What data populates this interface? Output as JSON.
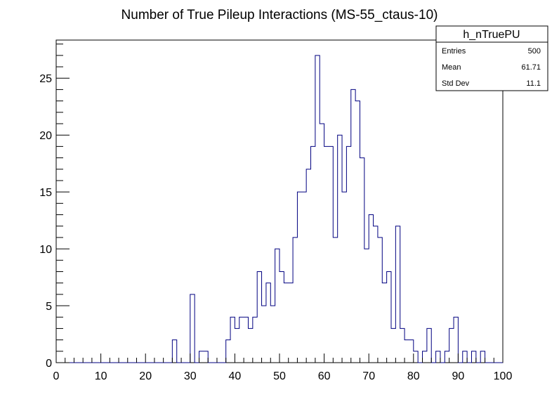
{
  "chart_data": {
    "type": "histogram",
    "title": "Number of True Pileup Interactions (MS-55_ctaus-10)",
    "xlabel": "",
    "ylabel": "",
    "xlim": [
      0,
      100
    ],
    "ylim": [
      0,
      28.35
    ],
    "bin_width": 1,
    "x_ticks": [
      0,
      10,
      20,
      30,
      40,
      50,
      60,
      70,
      80,
      90,
      100
    ],
    "y_ticks": [
      0,
      5,
      10,
      15,
      20,
      25
    ],
    "grid": false,
    "line_color": "#000080",
    "bins_x_low": [
      0,
      1,
      2,
      3,
      4,
      5,
      6,
      7,
      8,
      9,
      10,
      11,
      12,
      13,
      14,
      15,
      16,
      17,
      18,
      19,
      20,
      21,
      22,
      23,
      24,
      25,
      26,
      27,
      28,
      29,
      30,
      31,
      32,
      33,
      34,
      35,
      36,
      37,
      38,
      39,
      40,
      41,
      42,
      43,
      44,
      45,
      46,
      47,
      48,
      49,
      50,
      51,
      52,
      53,
      54,
      55,
      56,
      57,
      58,
      59,
      60,
      61,
      62,
      63,
      64,
      65,
      66,
      67,
      68,
      69,
      70,
      71,
      72,
      73,
      74,
      75,
      76,
      77,
      78,
      79,
      80,
      81,
      82,
      83,
      84,
      85,
      86,
      87,
      88,
      89,
      90,
      91,
      92,
      93,
      94,
      95,
      96,
      97,
      98,
      99
    ],
    "values": [
      0,
      0,
      0,
      0,
      0,
      0,
      0,
      0,
      0,
      0,
      0,
      0,
      0,
      0,
      0,
      0,
      0,
      0,
      0,
      0,
      0,
      0,
      0,
      0,
      0,
      0,
      2,
      0,
      0,
      0,
      6,
      0,
      1,
      1,
      0,
      0,
      0,
      0,
      2,
      4,
      3,
      4,
      4,
      3,
      4,
      8,
      5,
      7,
      5,
      10,
      8,
      7,
      7,
      11,
      15,
      15,
      17,
      19,
      27,
      21,
      19,
      19,
      11,
      20,
      15,
      19,
      24,
      23,
      18,
      10,
      13,
      12,
      11,
      7,
      8,
      3,
      12,
      3,
      2,
      2,
      1,
      0,
      1,
      3,
      0,
      1,
      0,
      1,
      3,
      4,
      0,
      1,
      0,
      1,
      0,
      1,
      0,
      0,
      0,
      0
    ]
  },
  "stats_box": {
    "name": "h_nTruePU",
    "entries_label": "Entries",
    "entries_value": "500",
    "mean_label": "Mean",
    "mean_value": "61.71",
    "stddev_label": "Std Dev",
    "stddev_value": "11.1"
  }
}
